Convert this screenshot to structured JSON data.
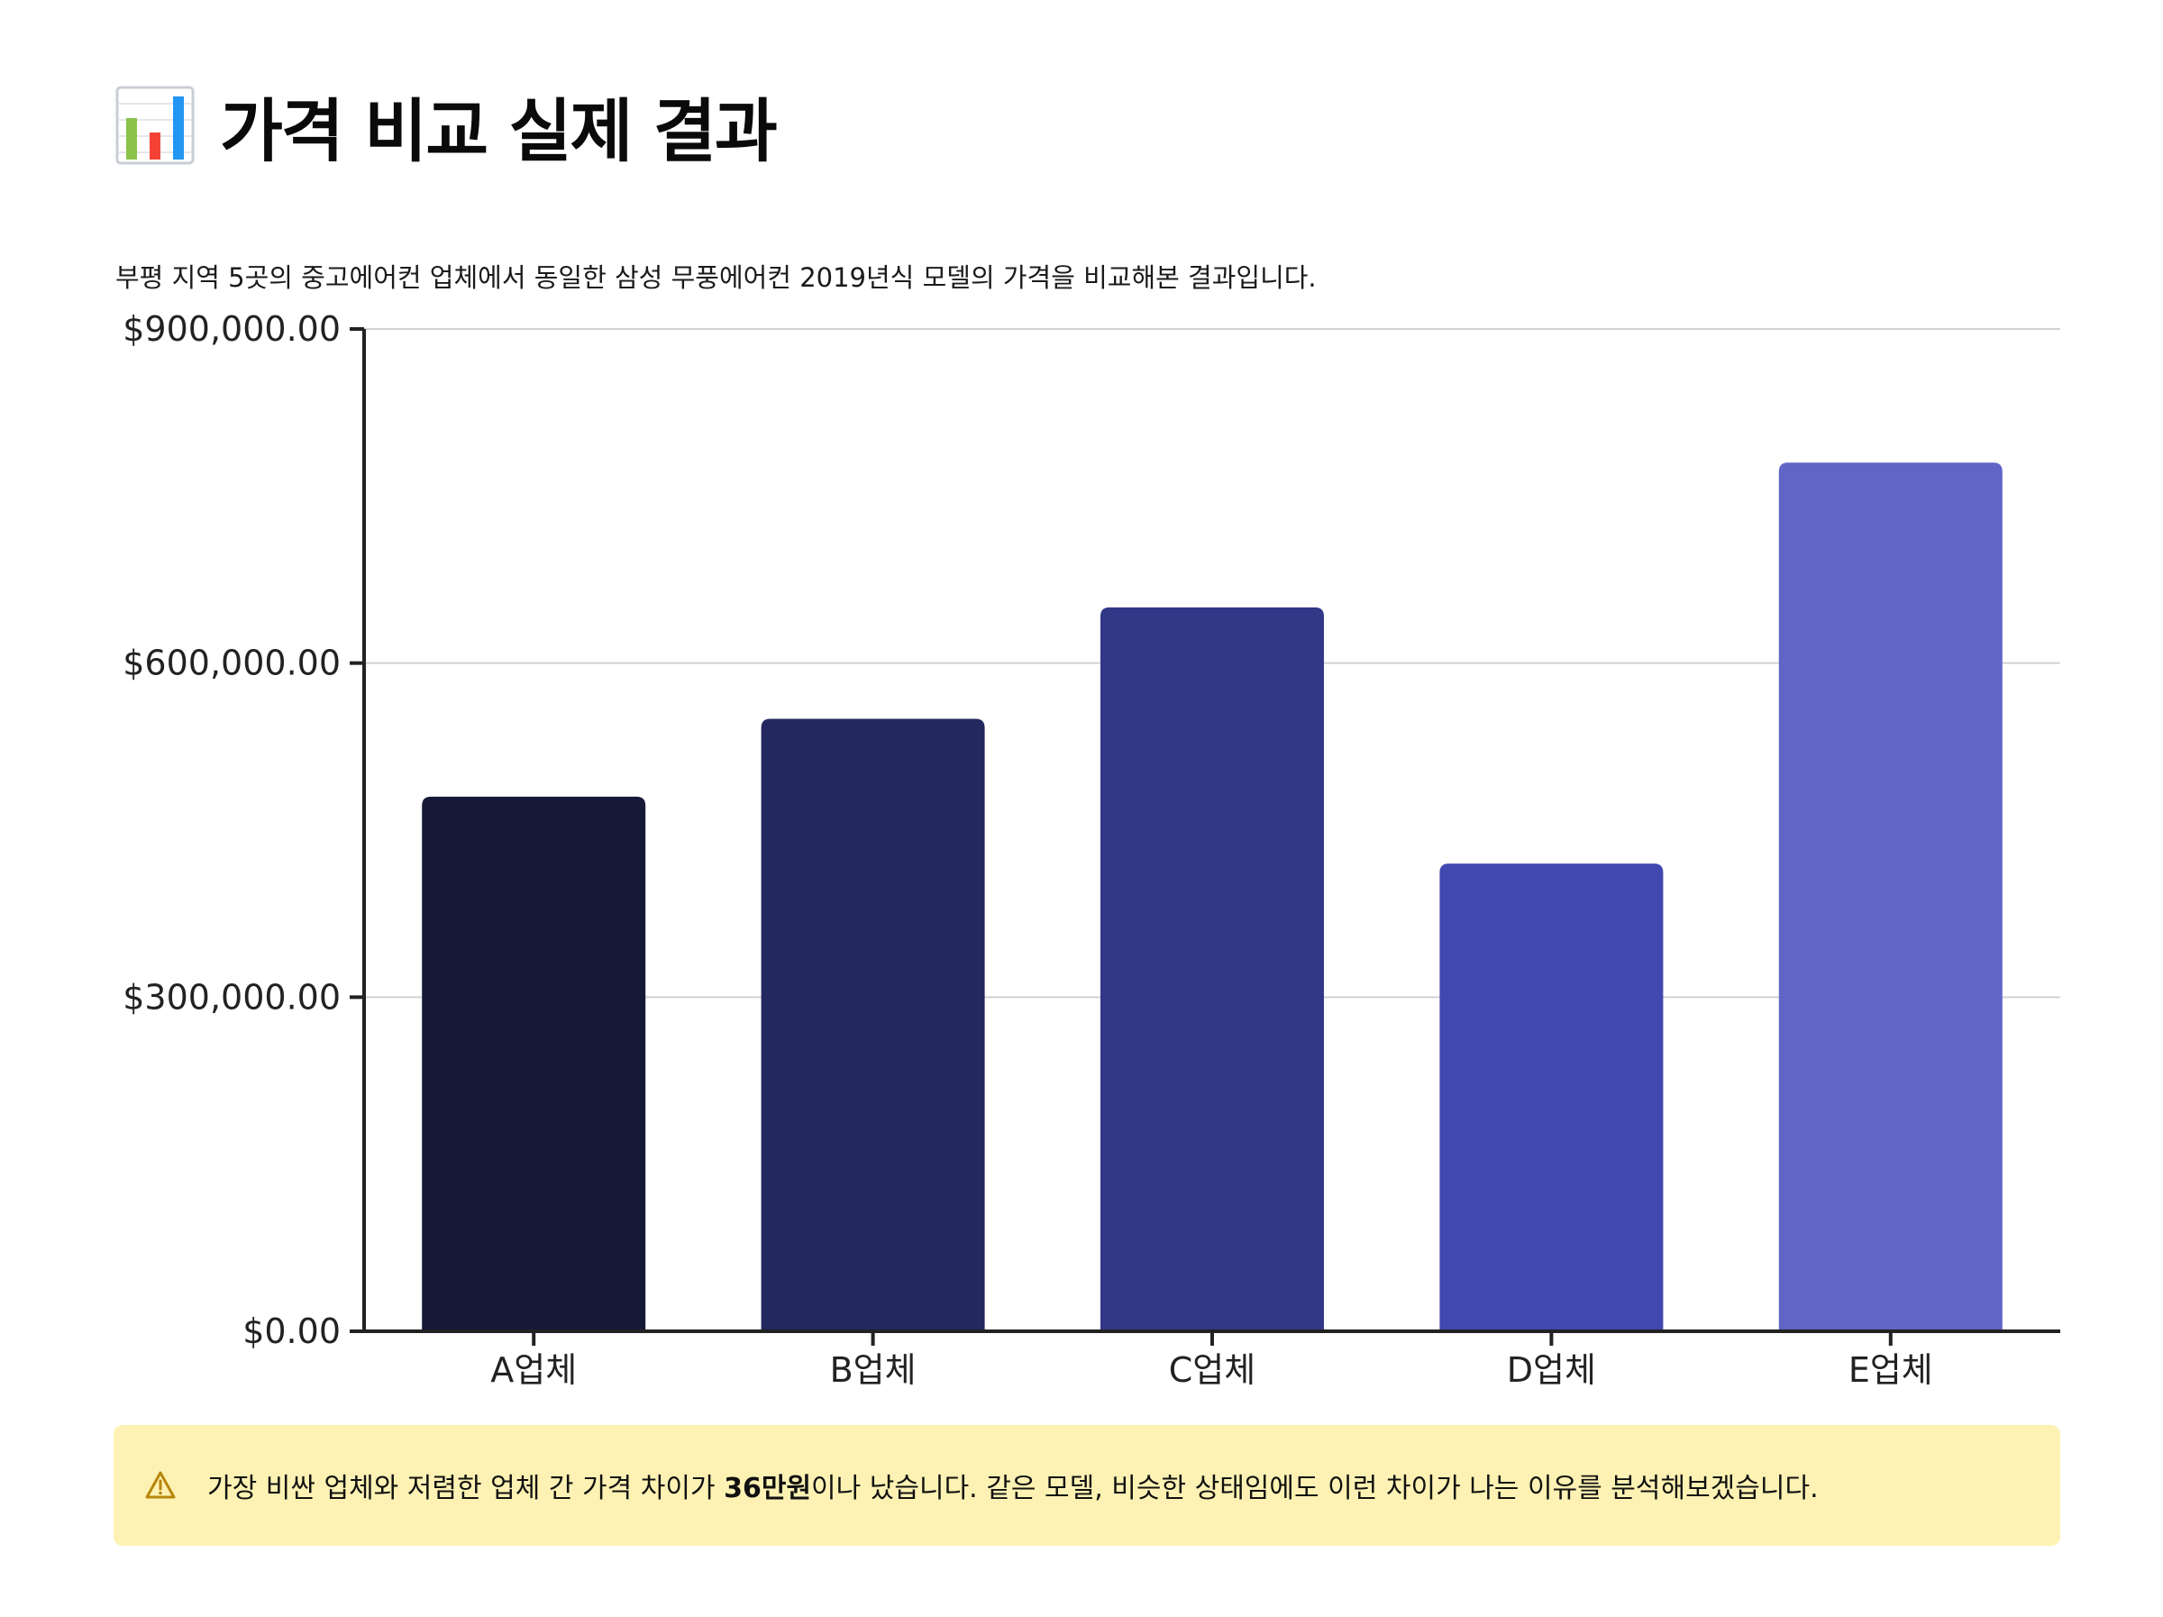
{
  "header": {
    "title": "가격 비교 실제 결과",
    "icon": "bar-chart-icon",
    "description": "부평 지역 5곳의 중고에어컨 업체에서 동일한 삼성 무풍에어컨 2019년식 모델의 가격을 비교해본 결과입니다."
  },
  "chart_data": {
    "type": "bar",
    "title": "",
    "xlabel": "",
    "ylabel": "",
    "categories": [
      "A업체",
      "B업체",
      "C업체",
      "D업체",
      "E업체"
    ],
    "values": [
      480000,
      550000,
      650000,
      420000,
      780000
    ],
    "ylim": [
      0,
      900000
    ],
    "yticks": [
      0,
      300000,
      600000,
      900000
    ],
    "ytick_labels": [
      "$0.00",
      "$300,000.00",
      "$600,000.00",
      "$900,000.00"
    ],
    "grid": true,
    "legend": "none",
    "colors": [
      "#161938",
      "#23285e",
      "#323787",
      "#4149ae",
      "#6066c6"
    ]
  },
  "note": {
    "icon": "warning-icon",
    "text_before": "가장 비싼 업체와 저렴한 업체 간 가격 차이가 ",
    "emphasis": "36만원",
    "text_after": "이나 났습니다. 같은 모델, 비슷한 상태임에도 이런 차이가 나는 이유를 분석해보겠습니다.",
    "background": "#fdf2b3",
    "icon_color": "#b8860b"
  }
}
